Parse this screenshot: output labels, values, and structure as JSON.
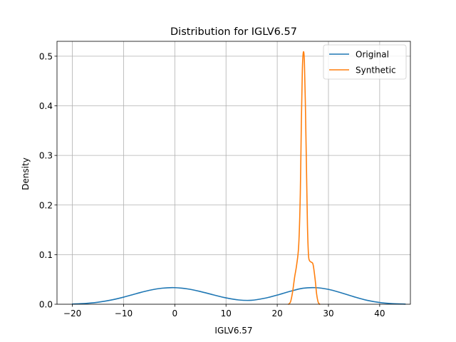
{
  "chart_data": {
    "type": "line",
    "title": "Distribution for IGLV6.57",
    "xlabel": "IGLV6.57",
    "ylabel": "Density",
    "xlim": [
      -23,
      46
    ],
    "ylim": [
      0,
      0.53
    ],
    "xticks": [
      -20,
      -10,
      0,
      10,
      20,
      30,
      40
    ],
    "yticks": [
      0.0,
      0.1,
      0.2,
      0.3,
      0.4,
      0.5
    ],
    "xtick_labels": [
      "−20",
      "−10",
      "0",
      "10",
      "20",
      "30",
      "40"
    ],
    "ytick_labels": [
      "0.0",
      "0.1",
      "0.2",
      "0.3",
      "0.4",
      "0.5"
    ],
    "grid": true,
    "legend_position": "top-right",
    "series": [
      {
        "name": "Original",
        "color": "#1f77b4",
        "x": [
          -20,
          -17.5,
          -15,
          -12.5,
          -10,
          -7.5,
          -5,
          -2.5,
          0,
          2.5,
          5,
          7.5,
          10,
          12.5,
          15,
          17.5,
          20,
          22.5,
          25,
          27.5,
          30,
          32.5,
          35,
          37.5,
          40,
          42.5,
          45
        ],
        "y": [
          0.0005,
          0.0016,
          0.004,
          0.0083,
          0.0143,
          0.0214,
          0.028,
          0.0323,
          0.0334,
          0.0309,
          0.0256,
          0.019,
          0.0128,
          0.0086,
          0.008,
          0.012,
          0.0185,
          0.026,
          0.0322,
          0.0334,
          0.03,
          0.023,
          0.015,
          0.008,
          0.0035,
          0.0012,
          0.0003
        ]
      },
      {
        "name": "Synthetic",
        "color": "#ff7f0e",
        "x": [
          22.2,
          22.6,
          23.0,
          23.4,
          23.8,
          24.2,
          24.5,
          24.7,
          24.9,
          25.1,
          25.3,
          25.5,
          25.7,
          25.9,
          26.1,
          26.3,
          26.6,
          27.0,
          27.4,
          27.7,
          28.0,
          28.3
        ],
        "y": [
          0.0,
          0.005,
          0.025,
          0.055,
          0.08,
          0.12,
          0.22,
          0.36,
          0.47,
          0.508,
          0.49,
          0.4,
          0.28,
          0.16,
          0.1,
          0.088,
          0.085,
          0.08,
          0.05,
          0.02,
          0.004,
          0.0
        ]
      }
    ]
  }
}
